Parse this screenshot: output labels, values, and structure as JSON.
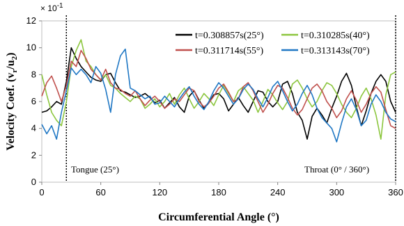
{
  "chart_data": {
    "type": "line",
    "title": "",
    "xlabel": "Circumferential Angle (°)",
    "ylabel": "Velocity Coef. (vr/u2)",
    "ylabel_main": "Velocity Coef. (v",
    "ylabel_sub1": "r",
    "ylabel_mid": "/u",
    "ylabel_sub2": "2",
    "ylabel_end": ")",
    "y_multiplier_base": "× 10",
    "y_multiplier_exp": "-1",
    "xlim": [
      0,
      360
    ],
    "ylim": [
      0,
      12
    ],
    "x_ticks": [
      0,
      60,
      120,
      180,
      240,
      300,
      360
    ],
    "y_ticks": [
      0,
      2,
      4,
      6,
      8,
      10,
      12
    ],
    "grid": false,
    "legend_position": "top-right",
    "annotations": {
      "tongue_label": "Tongue (25°)",
      "tongue_x": 25,
      "throat_label": "Throat (0° / 360°)",
      "throat_x": 360
    },
    "series": [
      {
        "name": "t=0.308857s(25°)",
        "color": "#000000",
        "x": [
          0,
          5,
          10,
          15,
          20,
          25,
          30,
          35,
          40,
          45,
          50,
          55,
          60,
          65,
          70,
          75,
          80,
          85,
          90,
          95,
          100,
          105,
          110,
          115,
          120,
          125,
          130,
          135,
          140,
          145,
          150,
          155,
          160,
          165,
          170,
          175,
          180,
          185,
          190,
          195,
          200,
          205,
          210,
          215,
          220,
          225,
          230,
          235,
          240,
          245,
          250,
          255,
          260,
          265,
          270,
          275,
          280,
          285,
          290,
          295,
          300,
          305,
          310,
          315,
          320,
          325,
          330,
          335,
          340,
          345,
          350,
          355,
          360
        ],
        "y": [
          5.2,
          5.3,
          5.6,
          6.0,
          5.8,
          7.5,
          10.0,
          9.2,
          8.6,
          8.2,
          7.8,
          7.6,
          7.5,
          8.0,
          8.1,
          7.4,
          6.8,
          6.7,
          6.5,
          6.3,
          6.4,
          6.6,
          6.3,
          5.9,
          6.1,
          5.5,
          5.9,
          6.3,
          5.6,
          5.2,
          6.4,
          6.8,
          6.1,
          5.5,
          5.9,
          6.5,
          6.6,
          6.2,
          5.3,
          5.8,
          6.3,
          5.7,
          5.2,
          6.0,
          6.8,
          6.7,
          6.0,
          5.6,
          6.0,
          7.3,
          7.5,
          6.6,
          5.2,
          4.6,
          3.2,
          4.9,
          5.5,
          5.0,
          4.4,
          5.5,
          6.4,
          7.5,
          8.1,
          7.2,
          5.6,
          4.2,
          5.3,
          6.6,
          7.5,
          8.0,
          7.5,
          6.0,
          5.2
        ]
      },
      {
        "name": "t=0.310285s(40°)",
        "color": "#8cc63e",
        "x": [
          0,
          5,
          10,
          15,
          20,
          25,
          30,
          35,
          40,
          45,
          50,
          55,
          60,
          65,
          70,
          75,
          80,
          85,
          90,
          95,
          100,
          105,
          110,
          115,
          120,
          125,
          130,
          135,
          140,
          145,
          150,
          155,
          160,
          165,
          170,
          175,
          180,
          185,
          190,
          195,
          200,
          205,
          210,
          215,
          220,
          225,
          230,
          235,
          240,
          245,
          250,
          255,
          260,
          265,
          270,
          275,
          280,
          285,
          290,
          295,
          300,
          305,
          310,
          315,
          320,
          325,
          330,
          335,
          340,
          345,
          350,
          355,
          360
        ],
        "y": [
          8.0,
          6.5,
          5.2,
          4.6,
          4.2,
          6.0,
          8.6,
          9.8,
          10.6,
          9.0,
          8.6,
          8.0,
          7.6,
          8.0,
          7.2,
          7.0,
          6.6,
          6.3,
          6.0,
          6.4,
          6.2,
          5.5,
          5.8,
          6.2,
          5.6,
          6.0,
          6.6,
          5.8,
          6.5,
          7.0,
          6.2,
          5.5,
          6.0,
          6.6,
          6.2,
          5.7,
          6.5,
          7.2,
          6.6,
          6.0,
          6.8,
          7.1,
          6.6,
          6.1,
          5.2,
          6.0,
          6.9,
          6.5,
          5.9,
          5.4,
          6.0,
          7.3,
          7.6,
          7.0,
          6.2,
          5.6,
          6.0,
          6.8,
          7.4,
          7.2,
          6.6,
          5.8,
          5.2,
          4.8,
          5.5,
          6.4,
          7.0,
          6.2,
          5.0,
          3.2,
          6.5,
          8.0,
          8.2
        ]
      },
      {
        "name": "t=0.311714s(55°)",
        "color": "#c0504d",
        "x": [
          0,
          5,
          10,
          15,
          20,
          25,
          30,
          35,
          40,
          45,
          50,
          55,
          60,
          65,
          70,
          75,
          80,
          85,
          90,
          95,
          100,
          105,
          110,
          115,
          120,
          125,
          130,
          135,
          140,
          145,
          150,
          155,
          160,
          165,
          170,
          175,
          180,
          185,
          190,
          195,
          200,
          205,
          210,
          215,
          220,
          225,
          230,
          235,
          240,
          245,
          250,
          255,
          260,
          265,
          270,
          275,
          280,
          285,
          290,
          295,
          300,
          305,
          310,
          315,
          320,
          325,
          330,
          335,
          340,
          345,
          350,
          355,
          360
        ],
        "y": [
          6.4,
          7.4,
          7.9,
          7.0,
          6.0,
          7.2,
          9.0,
          8.6,
          9.8,
          9.2,
          8.4,
          8.0,
          7.6,
          8.4,
          7.4,
          7.0,
          6.9,
          6.6,
          6.4,
          6.8,
          6.2,
          5.7,
          6.1,
          6.4,
          6.0,
          5.5,
          5.8,
          6.2,
          6.0,
          6.5,
          7.0,
          6.8,
          6.0,
          5.6,
          5.9,
          6.4,
          7.0,
          7.3,
          6.7,
          6.0,
          6.2,
          7.1,
          7.4,
          6.8,
          6.0,
          5.2,
          5.8,
          6.6,
          7.2,
          7.0,
          6.3,
          5.5,
          5.0,
          5.4,
          6.2,
          7.0,
          7.3,
          6.8,
          6.0,
          5.5,
          4.8,
          5.3,
          6.2,
          6.8,
          6.1,
          5.2,
          5.8,
          6.6,
          7.1,
          6.7,
          5.4,
          4.2,
          4.0
        ]
      },
      {
        "name": "t=0.313143s(70°)",
        "color": "#1f77c4",
        "x": [
          0,
          5,
          10,
          15,
          20,
          25,
          30,
          35,
          40,
          45,
          50,
          55,
          60,
          65,
          70,
          75,
          80,
          85,
          90,
          95,
          100,
          105,
          110,
          115,
          120,
          125,
          130,
          135,
          140,
          145,
          150,
          155,
          160,
          165,
          170,
          175,
          180,
          185,
          190,
          195,
          200,
          205,
          210,
          215,
          220,
          225,
          230,
          235,
          240,
          245,
          250,
          255,
          260,
          265,
          270,
          275,
          280,
          285,
          290,
          295,
          300,
          305,
          310,
          315,
          320,
          325,
          330,
          335,
          340,
          345,
          350,
          355,
          360
        ],
        "y": [
          4.3,
          3.6,
          4.2,
          3.2,
          5.2,
          6.8,
          8.5,
          8.0,
          8.4,
          8.0,
          7.4,
          8.6,
          8.1,
          6.9,
          5.2,
          8.0,
          9.4,
          9.9,
          7.0,
          6.8,
          6.5,
          6.2,
          6.4,
          5.8,
          5.9,
          6.4,
          6.0,
          5.6,
          6.2,
          6.7,
          7.1,
          6.4,
          5.8,
          5.4,
          6.0,
          6.8,
          7.4,
          7.0,
          6.4,
          5.8,
          6.2,
          6.9,
          7.3,
          6.9,
          6.2,
          5.6,
          6.3,
          7.1,
          7.5,
          6.8,
          6.0,
          5.3,
          5.8,
          6.6,
          7.2,
          6.5,
          5.5,
          4.8,
          4.4,
          4.0,
          3.0,
          4.4,
          5.6,
          6.2,
          5.4,
          4.2,
          4.6,
          5.8,
          6.5,
          6.0,
          5.2,
          4.7,
          4.5
        ]
      }
    ]
  }
}
